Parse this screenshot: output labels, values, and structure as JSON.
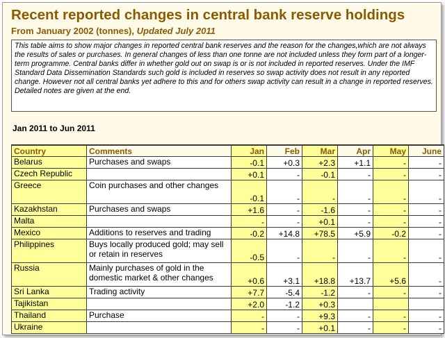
{
  "title": "Recent reported changes in central bank reserve holdings",
  "subtitle": {
    "main": "From January 2002 (tonnes),",
    "updated": "Updated July 2011"
  },
  "notes": "This table aims to show major changes in reported central bank reserves and the reason for the changes,which are not always the results of sales or purchases. In general changes of less than one tonne are not included unless they form part of a longer-term programme.   Central banks differ in whether gold out on swap is or is not included in reported reserves. Under the IMF Standard Data Dissemination Standards such gold is included in reserves so swap activity does not result in any reported change. However not all central banks yet adhere to this and for others swap activity can result in a change in reported reserves.  Detailed notes are given at the end.",
  "period": "Jan 2011 to Jun 2011",
  "table": {
    "headers": [
      "Country",
      "Comments",
      "Jan",
      "Feb",
      "Mar",
      "Apr",
      "May",
      "June"
    ],
    "rows": [
      {
        "country": "Belarus",
        "comments": "Purchases and swaps",
        "jan": "-0.1",
        "feb": "+0.3",
        "mar": "+2.3",
        "apr": "+1.1",
        "may": "-",
        "jun": "-"
      },
      {
        "country": "Czech Republic",
        "comments": "",
        "jan": "+0.1",
        "feb": "-",
        "mar": "-0.1",
        "apr": "-",
        "may": "-",
        "jun": "-"
      },
      {
        "country": "Greece",
        "comments": "Coin purchases and other changes",
        "jan": "-0.1",
        "feb": "-",
        "mar": "-",
        "apr": "-",
        "may": "-",
        "jun": "-"
      },
      {
        "country": "Kazakhstan",
        "comments": "Purchases and swaps",
        "jan": "+1.6",
        "feb": "-",
        "mar": "-1.6",
        "apr": "-",
        "may": "-",
        "jun": "-"
      },
      {
        "country": "Malta",
        "comments": "",
        "jan": "-",
        "feb": "-",
        "mar": "+0.1",
        "apr": "-",
        "may": "-",
        "jun": "-"
      },
      {
        "country": "Mexico",
        "comments": "Additions to reserves and trading",
        "jan": "-0.2",
        "feb": "+14.8",
        "mar": "+78.5",
        "apr": "+5.9",
        "may": "-0.2",
        "jun": "-"
      },
      {
        "country": "Philippines",
        "comments": "Buys locally produced gold; may sell or retain in reserves",
        "jan": "-0.5",
        "feb": "-",
        "mar": "-",
        "apr": "-",
        "may": "-",
        "jun": "-"
      },
      {
        "country": "Russia",
        "comments": "Mainly purchases of gold in the domestic market & other changes",
        "jan": "+0.6",
        "feb": "+3.1",
        "mar": "+18.8",
        "apr": "+13.7",
        "may": "+5.6",
        "jun": "-"
      },
      {
        "country": "Sri Lanka",
        "comments": "Trading activity",
        "jan": "+7.7",
        "feb": "-5.4",
        "mar": "-1.2",
        "apr": "-",
        "may": "-",
        "jun": "-"
      },
      {
        "country": "Tajikistan",
        "comments": "",
        "jan": "+2.0",
        "feb": "-1.2",
        "mar": "+0.3",
        "apr": "",
        "may": "",
        "jun": ""
      },
      {
        "country": "Thailand",
        "comments": "Purchase",
        "jan": "-",
        "feb": "-",
        "mar": "+9.3",
        "apr": "-",
        "may": "-",
        "jun": "-"
      },
      {
        "country": "Ukraine",
        "comments": "",
        "jan": "-",
        "feb": "-",
        "mar": "+0.1",
        "apr": "-",
        "may": "-",
        "jun": "-"
      }
    ]
  }
}
